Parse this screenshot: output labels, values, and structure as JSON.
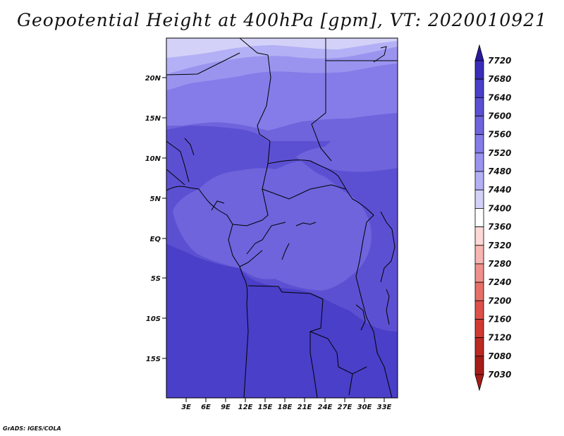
{
  "title": "Geopotential Height at 400hPa [gpm], VT: 2020010921",
  "footer": "GrADS: IGES/COLA",
  "map": {
    "lat_ticks": [
      "20N",
      "15N",
      "10N",
      "5N",
      "EQ",
      "5S",
      "10S",
      "15S"
    ],
    "lon_ticks": [
      "3E",
      "6E",
      "9E",
      "12E",
      "15E",
      "18E",
      "21E",
      "24E",
      "27E",
      "30E",
      "33E"
    ],
    "colors": {
      "band_7400": "#cfcdf7",
      "band_7440": "#b4b0f5",
      "band_7480": "#9b94ef",
      "band_7520": "#857ce9",
      "band_7560": "#6f64dc",
      "band_7600": "#5c50d2",
      "band_7640": "#4a3fc8",
      "border": "#000000"
    }
  },
  "colorbar": {
    "labels": [
      "7720",
      "7680",
      "7640",
      "7600",
      "7560",
      "7520",
      "7480",
      "7440",
      "7400",
      "7360",
      "7320",
      "7280",
      "7240",
      "7200",
      "7160",
      "7120",
      "7080",
      "7030"
    ],
    "colors": [
      "#2a1aa0",
      "#3a2db8",
      "#4a3fc8",
      "#5c50d2",
      "#6f64dc",
      "#857ce9",
      "#9b94ef",
      "#b4b0f5",
      "#d3d1f8",
      "#ffffff",
      "#fcd9d6",
      "#f7b6b1",
      "#ef918b",
      "#e57067",
      "#dd514a",
      "#d03a33",
      "#bb2a23",
      "#a51d18"
    ]
  }
}
